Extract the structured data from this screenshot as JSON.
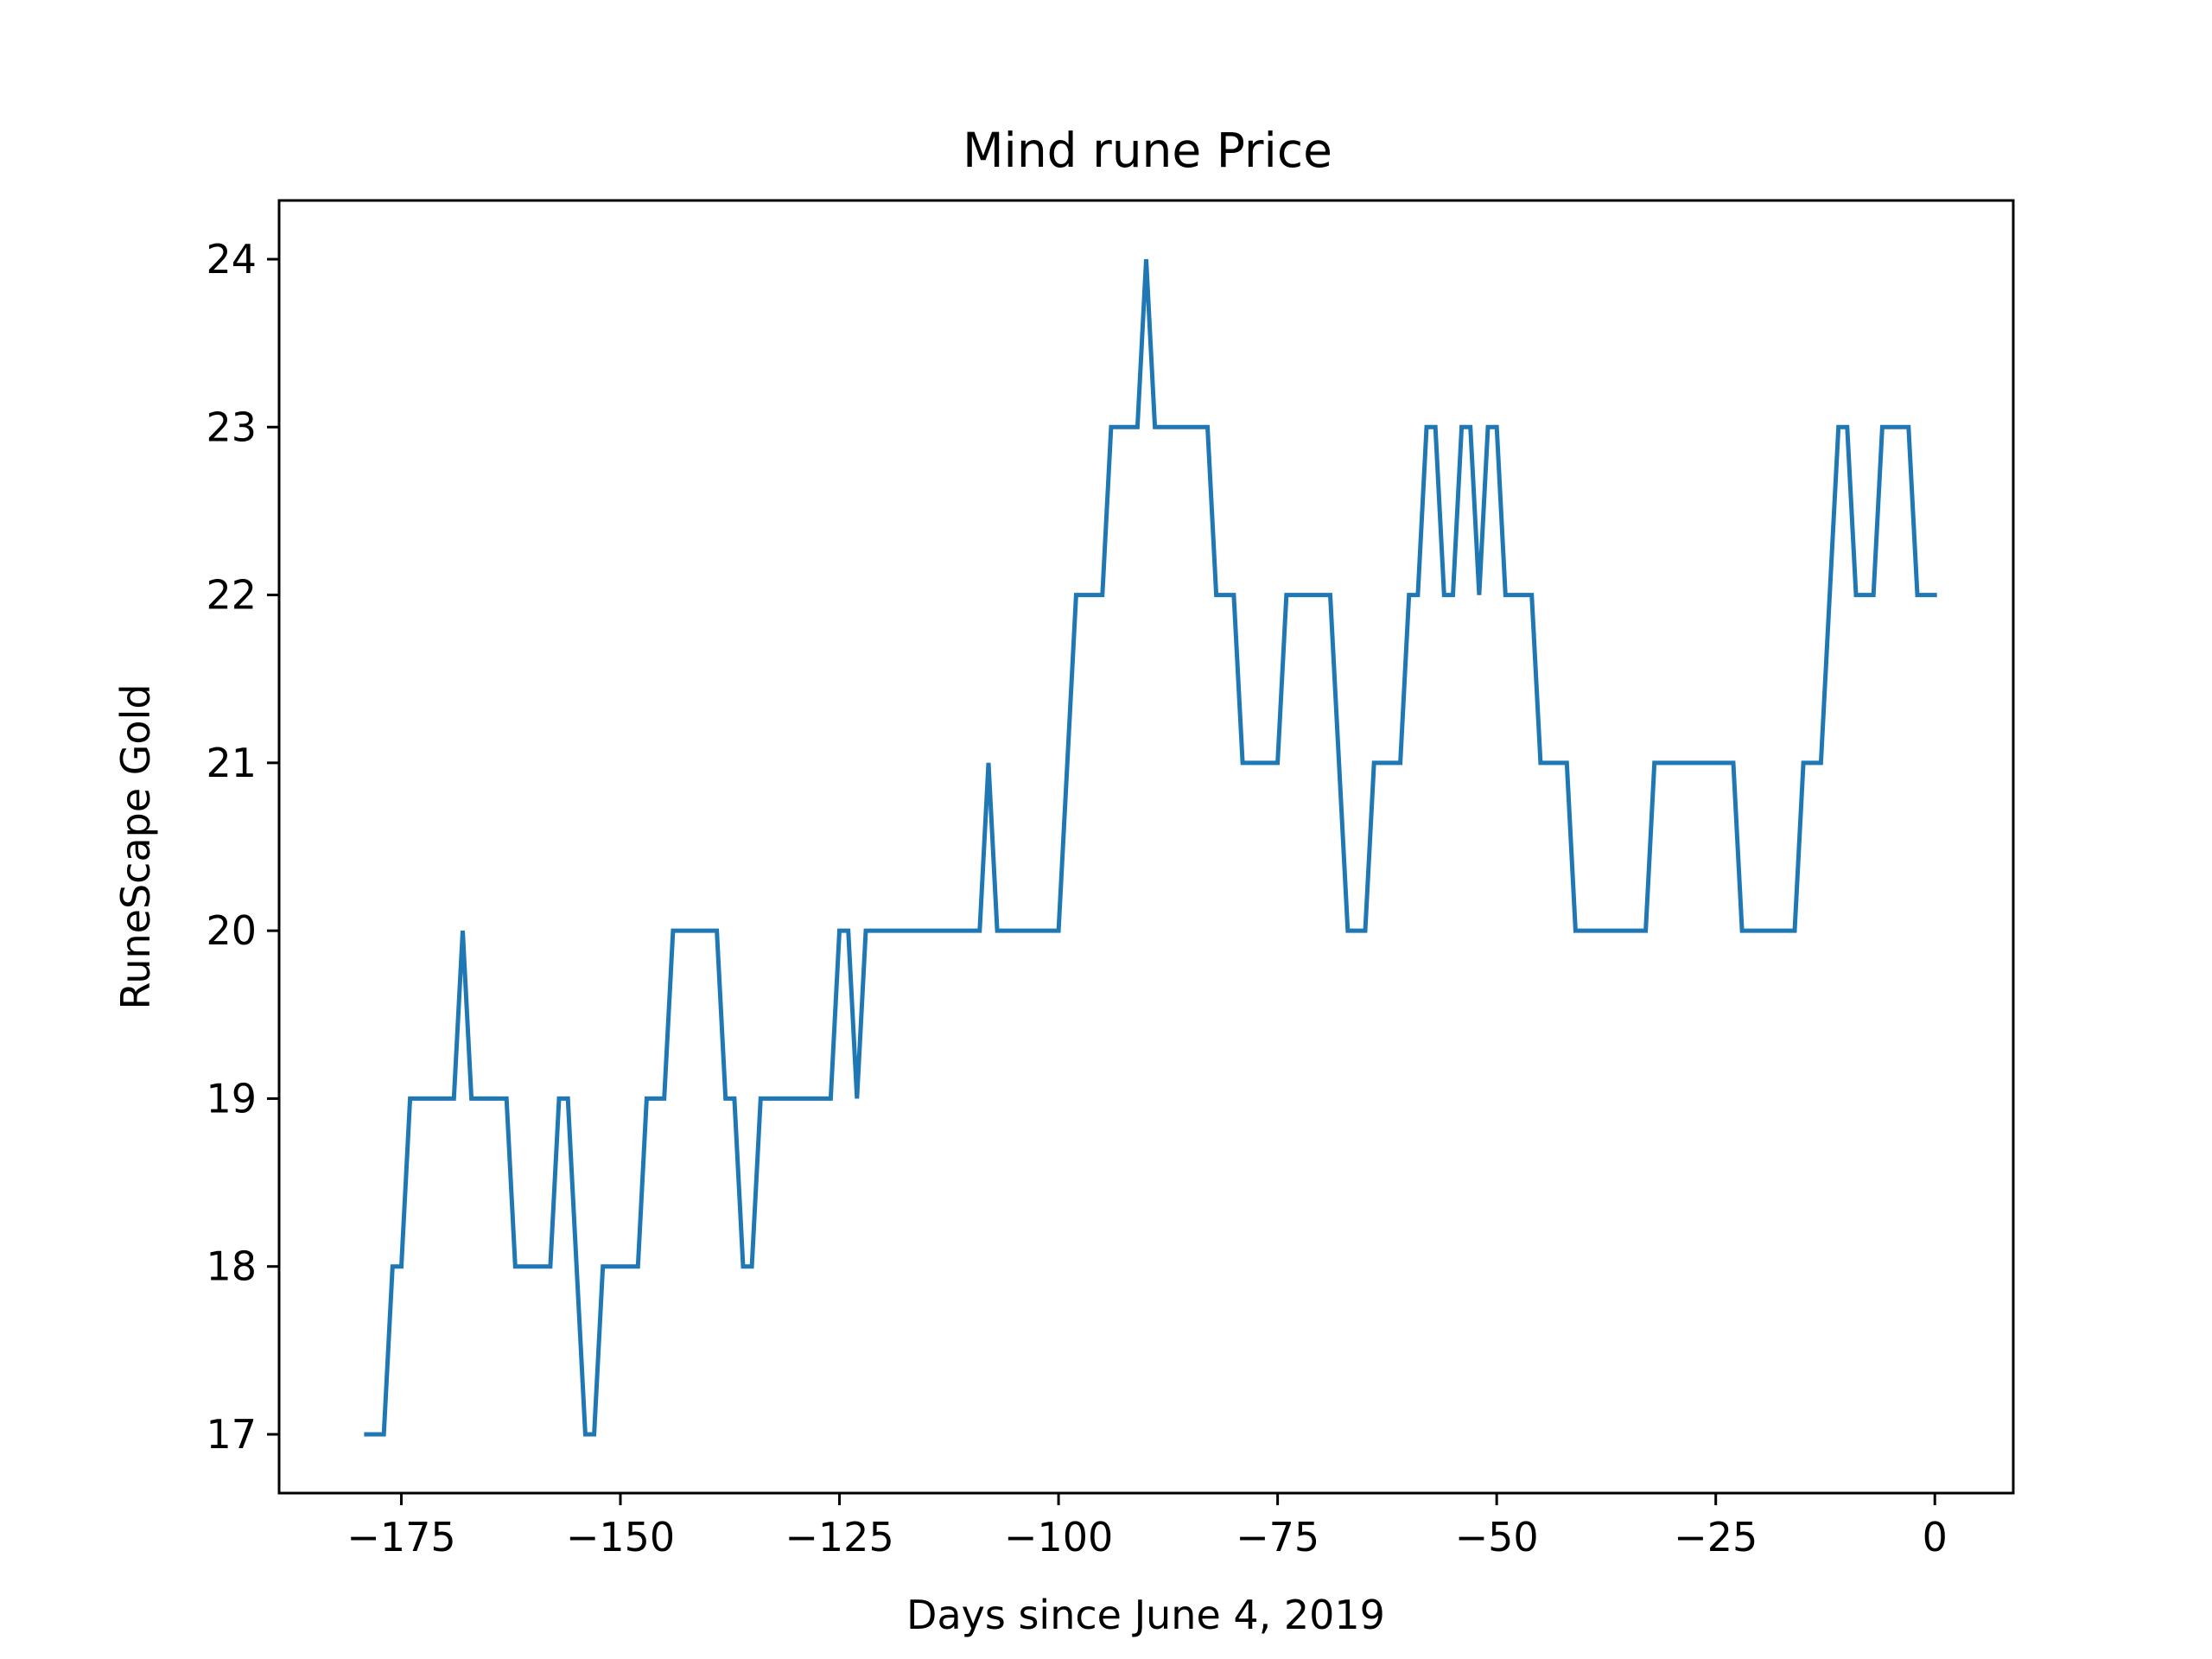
{
  "chart_data": {
    "type": "line",
    "title": "Mind rune Price",
    "xlabel": "Days since June 4, 2019",
    "ylabel": "RuneScape Gold",
    "xlim": [
      -188.95,
      8.95
    ],
    "ylim": [
      16.65,
      24.35
    ],
    "xticks": [
      -175,
      -150,
      -125,
      -100,
      -75,
      -50,
      -25,
      0
    ],
    "xtick_labels": [
      "−175",
      "−150",
      "−125",
      "−100",
      "−75",
      "−50",
      "−25",
      "0"
    ],
    "yticks": [
      17,
      18,
      19,
      20,
      21,
      22,
      23,
      24
    ],
    "ytick_labels": [
      "17",
      "18",
      "19",
      "20",
      "21",
      "22",
      "23",
      "24"
    ],
    "grid": false,
    "line_color": "#1f77b4",
    "series": [
      {
        "points": [
          [
            -179,
            17
          ],
          [
            -177,
            17
          ],
          [
            -176,
            18
          ],
          [
            -175,
            18
          ],
          [
            -174,
            19
          ],
          [
            -169,
            19
          ],
          [
            -168,
            20
          ],
          [
            -167,
            19
          ],
          [
            -163,
            19
          ],
          [
            -162,
            18
          ],
          [
            -158,
            18
          ],
          [
            -157,
            19
          ],
          [
            -156,
            19
          ],
          [
            -154,
            17
          ],
          [
            -153,
            17
          ],
          [
            -152,
            18
          ],
          [
            -148,
            18
          ],
          [
            -147,
            19
          ],
          [
            -145,
            19
          ],
          [
            -144,
            20
          ],
          [
            -139,
            20
          ],
          [
            -138,
            19
          ],
          [
            -137,
            19
          ],
          [
            -136,
            18
          ],
          [
            -135,
            18
          ],
          [
            -134,
            19
          ],
          [
            -126,
            19
          ],
          [
            -125,
            20
          ],
          [
            -124,
            20
          ],
          [
            -123,
            19
          ],
          [
            -122,
            20
          ],
          [
            -109,
            20
          ],
          [
            -108,
            21
          ],
          [
            -107,
            20
          ],
          [
            -100,
            20
          ],
          [
            -98,
            22
          ],
          [
            -95,
            22
          ],
          [
            -94,
            23
          ],
          [
            -91,
            23
          ],
          [
            -90,
            24
          ],
          [
            -89,
            23
          ],
          [
            -83,
            23
          ],
          [
            -82,
            22
          ],
          [
            -80,
            22
          ],
          [
            -79,
            21
          ],
          [
            -75,
            21
          ],
          [
            -74,
            22
          ],
          [
            -69,
            22
          ],
          [
            -67,
            20
          ],
          [
            -65,
            20
          ],
          [
            -64,
            21
          ],
          [
            -61,
            21
          ],
          [
            -60,
            22
          ],
          [
            -59,
            22
          ],
          [
            -58,
            23
          ],
          [
            -57,
            23
          ],
          [
            -56,
            22
          ],
          [
            -55,
            22
          ],
          [
            -54,
            23
          ],
          [
            -53,
            23
          ],
          [
            -52,
            22
          ],
          [
            -51,
            23
          ],
          [
            -50,
            23
          ],
          [
            -49,
            22
          ],
          [
            -46,
            22
          ],
          [
            -45,
            21
          ],
          [
            -42,
            21
          ],
          [
            -41,
            20
          ],
          [
            -33,
            20
          ],
          [
            -32,
            21
          ],
          [
            -23,
            21
          ],
          [
            -22,
            20
          ],
          [
            -16,
            20
          ],
          [
            -15,
            21
          ],
          [
            -13,
            21
          ],
          [
            -11,
            23
          ],
          [
            -10,
            23
          ],
          [
            -9,
            22
          ],
          [
            -7,
            22
          ],
          [
            -6,
            23
          ],
          [
            -3,
            23
          ],
          [
            -2,
            22
          ],
          [
            0,
            22
          ]
        ]
      }
    ]
  }
}
